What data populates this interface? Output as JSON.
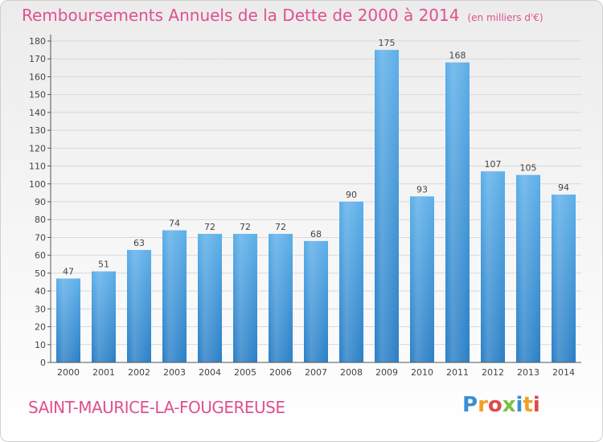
{
  "header": {
    "title": "Remboursements Annuels de la Dette de 2000 à 2014",
    "subtitle": "(en milliers d'€)"
  },
  "footer": {
    "commune": "SAINT-MAURICE-LA-FOUGEREUSE",
    "logo_letters": [
      "P",
      "r",
      "o",
      "x",
      "i",
      "t",
      "i"
    ],
    "logo_colors": [
      "#3a8fd6",
      "#f0a020",
      "#e04a4a",
      "#7cc043",
      "#3a8fd6",
      "#f0a020",
      "#e04a4a"
    ]
  },
  "chart_data": {
    "type": "bar",
    "title": "Remboursements Annuels de la Dette de 2000 à 2014",
    "xlabel": "",
    "ylabel": "",
    "categories": [
      "2000",
      "2001",
      "2002",
      "2003",
      "2004",
      "2005",
      "2006",
      "2007",
      "2008",
      "2009",
      "2010",
      "2011",
      "2012",
      "2013",
      "2014"
    ],
    "values": [
      47,
      51,
      63,
      74,
      72,
      72,
      72,
      68,
      90,
      175,
      93,
      168,
      107,
      105,
      94
    ],
    "ylim": [
      0,
      180
    ],
    "ytick_step": 10,
    "grid": true,
    "bar_color_top": "#5dafe9",
    "bar_color_bottom": "#2a7fc6"
  }
}
